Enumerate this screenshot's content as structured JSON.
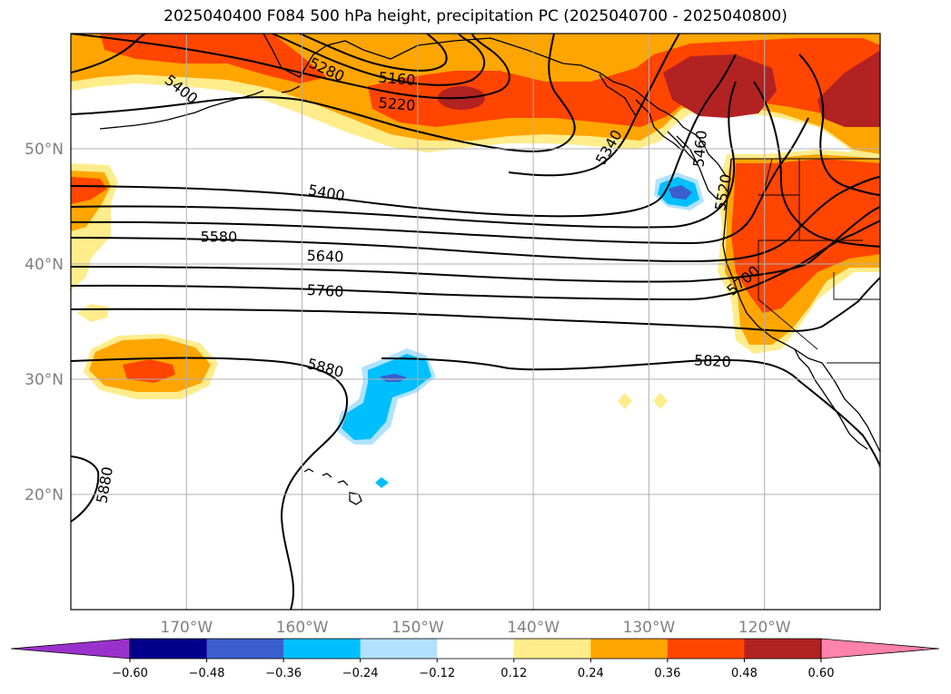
{
  "title": "2025040400 F084 500 hPa height, precipitation PC (2025040700 - 2025040800)",
  "map": {
    "projection": "lat-lon",
    "lon_range": [
      -180,
      -110
    ],
    "lat_range": [
      10,
      60
    ],
    "lat_ticks": [
      {
        "value": 20,
        "label": "20°N"
      },
      {
        "value": 30,
        "label": "30°N"
      },
      {
        "value": 40,
        "label": "40°N"
      },
      {
        "value": 50,
        "label": "50°N"
      }
    ],
    "lon_ticks": [
      {
        "value": -170,
        "label": "170°W"
      },
      {
        "value": -160,
        "label": "160°W"
      },
      {
        "value": -150,
        "label": "150°W"
      },
      {
        "value": -140,
        "label": "140°W"
      },
      {
        "value": -130,
        "label": "130°W"
      },
      {
        "value": -120,
        "label": "120°W"
      }
    ],
    "grid": true,
    "contour_labels": [
      {
        "text": "5400",
        "lon": -170.5,
        "lat": 55.1,
        "angle": 38
      },
      {
        "text": "5280",
        "lon": -157.9,
        "lat": 56.8,
        "angle": 25
      },
      {
        "text": "5160",
        "lon": -151.8,
        "lat": 56.0,
        "angle": 5
      },
      {
        "text": "5220",
        "lon": -151.8,
        "lat": 53.8,
        "angle": 5
      },
      {
        "text": "5340",
        "lon": -133.4,
        "lat": 50.1,
        "angle": -60
      },
      {
        "text": "5460",
        "lon": -125.5,
        "lat": 50.0,
        "angle": -85
      },
      {
        "text": "5520",
        "lon": -123.5,
        "lat": 46.2,
        "angle": -80
      },
      {
        "text": "5400",
        "lon": -157.9,
        "lat": 46.1,
        "angle": 10
      },
      {
        "text": "5580",
        "lon": -167.2,
        "lat": 42.3,
        "angle": 0
      },
      {
        "text": "5640",
        "lon": -158.0,
        "lat": 40.6,
        "angle": 2
      },
      {
        "text": "5760",
        "lon": -158.0,
        "lat": 37.6,
        "angle": 3
      },
      {
        "text": "5700",
        "lon": -121.8,
        "lat": 38.5,
        "angle": -40
      },
      {
        "text": "5880",
        "lon": -158.0,
        "lat": 30.9,
        "angle": 15
      },
      {
        "text": "5820",
        "lon": -124.5,
        "lat": 31.5,
        "angle": 3
      },
      {
        "text": "5880",
        "lon": -177.0,
        "lat": 20.8,
        "angle": -80
      }
    ]
  },
  "colorbar": {
    "colors": [
      "#9932cc",
      "#00008b",
      "#3a5fcd",
      "#00bfff",
      "#b0e2ff",
      "#ffffff",
      "#ffec8b",
      "#ffa500",
      "#ff4500",
      "#b22222",
      "#ff82ab"
    ],
    "tick_labels": [
      "−0.60",
      "−0.48",
      "−0.36",
      "−0.24",
      "−0.12",
      "0.12",
      "0.24",
      "0.36",
      "0.48",
      "0.60"
    ],
    "extend": "both"
  }
}
